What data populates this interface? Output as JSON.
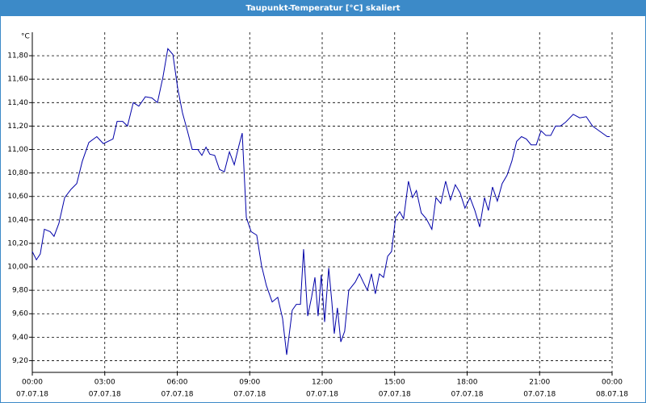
{
  "chart_data": {
    "type": "line",
    "title": "Taupunkt-Temperatur [°C] skaliert",
    "y_unit": "°C",
    "x": [
      0,
      0.17,
      0.33,
      0.5,
      0.74,
      0.9,
      1.1,
      1.34,
      1.6,
      1.84,
      2.07,
      2.34,
      2.67,
      2.94,
      3.34,
      3.51,
      3.74,
      3.94,
      4.18,
      4.41,
      4.68,
      4.95,
      5.18,
      5.41,
      5.61,
      5.82,
      6.02,
      6.22,
      6.42,
      6.62,
      6.85,
      7.02,
      7.19,
      7.35,
      7.55,
      7.75,
      7.95,
      8.16,
      8.36,
      8.56,
      8.69,
      8.86,
      9.06,
      9.29,
      9.49,
      9.69,
      9.93,
      10.16,
      10.36,
      10.53,
      10.76,
      10.93,
      11.1,
      11.23,
      11.4,
      11.56,
      11.7,
      11.83,
      11.96,
      12.1,
      12.27,
      12.4,
      12.5,
      12.63,
      12.77,
      12.93,
      13.1,
      13.37,
      13.54,
      13.7,
      13.87,
      14.04,
      14.2,
      14.37,
      14.54,
      14.71,
      14.87,
      15.04,
      15.21,
      15.37,
      15.57,
      15.74,
      15.9,
      16.1,
      16.31,
      16.54,
      16.71,
      16.91,
      17.11,
      17.31,
      17.51,
      17.71,
      17.91,
      18.12,
      18.32,
      18.52,
      18.72,
      18.88,
      19.05,
      19.25,
      19.45,
      19.65,
      19.85,
      20.05,
      20.25,
      20.45,
      20.65,
      20.86,
      21.06,
      21.26,
      21.46,
      21.66,
      21.86,
      22.06,
      22.39,
      22.66,
      22.93,
      23.19,
      23.46,
      23.8,
      23.9
    ],
    "values": [
      10.13,
      10.06,
      10.11,
      10.32,
      10.3,
      10.26,
      10.37,
      10.59,
      10.66,
      10.71,
      10.9,
      11.06,
      11.11,
      11.05,
      11.09,
      11.24,
      11.24,
      11.2,
      11.4,
      11.37,
      11.45,
      11.44,
      11.4,
      11.62,
      11.86,
      11.81,
      11.52,
      11.31,
      11.16,
      11.0,
      11.0,
      10.95,
      11.02,
      10.96,
      10.95,
      10.83,
      10.81,
      10.98,
      10.87,
      11.04,
      11.14,
      10.42,
      10.3,
      10.27,
      10.01,
      9.84,
      9.7,
      9.74,
      9.56,
      9.25,
      9.63,
      9.68,
      9.68,
      10.15,
      9.58,
      9.74,
      9.91,
      9.58,
      9.93,
      9.53,
      9.99,
      9.7,
      9.43,
      9.65,
      9.36,
      9.45,
      9.8,
      9.87,
      9.94,
      9.87,
      9.8,
      9.94,
      9.77,
      9.94,
      9.91,
      10.09,
      10.13,
      10.42,
      10.47,
      10.41,
      10.73,
      10.59,
      10.65,
      10.46,
      10.41,
      10.32,
      10.59,
      10.54,
      10.73,
      10.57,
      10.7,
      10.63,
      10.5,
      10.59,
      10.48,
      10.34,
      10.59,
      10.48,
      10.68,
      10.56,
      10.71,
      10.78,
      10.9,
      11.07,
      11.11,
      11.09,
      11.04,
      11.04,
      11.16,
      11.12,
      11.12,
      11.2,
      11.2,
      11.23,
      11.3,
      11.27,
      11.28,
      11.2,
      11.16,
      11.11,
      11.11
    ],
    "color": "#0000a8",
    "xlim": [
      0,
      24
    ],
    "xticks": [
      {
        "value": 0,
        "label": "00:00"
      },
      {
        "value": 3,
        "label": "03:00"
      },
      {
        "value": 6,
        "label": "06:00"
      },
      {
        "value": 9,
        "label": "09:00"
      },
      {
        "value": 12,
        "label": "12:00"
      },
      {
        "value": 15,
        "label": "15:00"
      },
      {
        "value": 18,
        "label": "18:00"
      },
      {
        "value": 21,
        "label": "21:00"
      },
      {
        "value": 24,
        "label": "00:00"
      }
    ],
    "xtick_dates": [
      "07.07.18",
      "07.07.18",
      "07.07.18",
      "07.07.18",
      "07.07.18",
      "07.07.18",
      "07.07.18",
      "07.07.18",
      "08.07.18"
    ],
    "ylim": [
      9.1,
      12.0
    ],
    "yticks": [
      {
        "value": 9.2,
        "label": "9,20"
      },
      {
        "value": 9.4,
        "label": "9,40"
      },
      {
        "value": 9.6,
        "label": "9,60"
      },
      {
        "value": 9.8,
        "label": "9,80"
      },
      {
        "value": 10.0,
        "label": "10,00"
      },
      {
        "value": 10.2,
        "label": "10,20"
      },
      {
        "value": 10.4,
        "label": "10,40"
      },
      {
        "value": 10.6,
        "label": "10,60"
      },
      {
        "value": 10.8,
        "label": "10,80"
      },
      {
        "value": 11.0,
        "label": "11,00"
      },
      {
        "value": 11.2,
        "label": "11,20"
      },
      {
        "value": 11.4,
        "label": "11,40"
      },
      {
        "value": 11.6,
        "label": "11,60"
      },
      {
        "value": 11.8,
        "label": "11,80"
      }
    ],
    "grid": true
  }
}
